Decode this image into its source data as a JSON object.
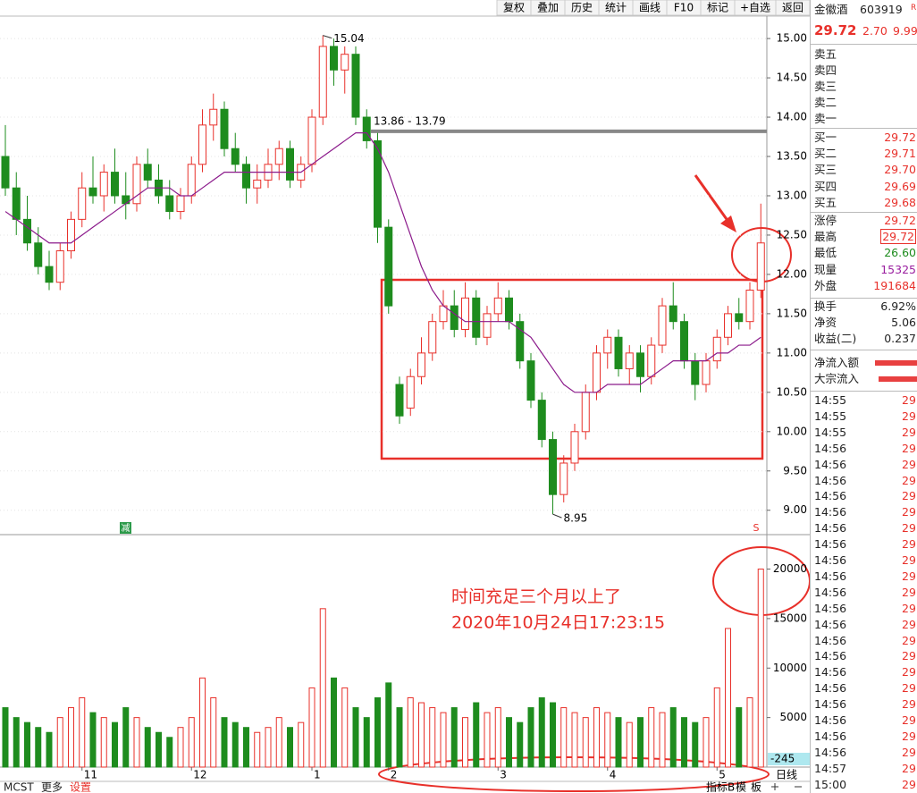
{
  "toolbar": [
    "复权",
    "叠加",
    "历史",
    "统计",
    "画线",
    "F10",
    "标记",
    "+自选",
    "返回"
  ],
  "chart_data": [
    {
      "type": "candlestick",
      "categories": [
        null,
        null,
        null,
        null,
        null,
        null,
        null,
        "11",
        null,
        null,
        null,
        null,
        null,
        null,
        null,
        null,
        null,
        "12",
        null,
        null,
        null,
        null,
        null,
        null,
        null,
        null,
        null,
        null,
        "1",
        null,
        null,
        null,
        null,
        null,
        null,
        "2",
        null,
        null,
        null,
        null,
        null,
        null,
        null,
        null,
        null,
        "3",
        null,
        null,
        null,
        null,
        null,
        null,
        null,
        null,
        null,
        "4",
        null,
        null,
        null,
        null,
        null,
        null,
        null,
        null,
        null,
        "5",
        null,
        null,
        null,
        null
      ],
      "open": [
        13.5,
        13.1,
        12.7,
        12.4,
        12.1,
        11.9,
        12.3,
        12.7,
        13.1,
        13.0,
        13.3,
        13.0,
        12.9,
        13.4,
        13.2,
        13.0,
        12.8,
        13.0,
        13.4,
        13.9,
        14.1,
        13.6,
        13.4,
        13.1,
        13.2,
        13.4,
        13.6,
        13.2,
        13.4,
        14.0,
        14.9,
        14.6,
        14.8,
        14.0,
        13.7,
        12.6,
        10.6,
        10.3,
        10.7,
        11.0,
        11.4,
        11.6,
        11.3,
        11.7,
        11.2,
        11.5,
        11.7,
        11.4,
        10.9,
        10.4,
        9.9,
        9.2,
        9.6,
        10.0,
        10.5,
        11.0,
        11.2,
        10.8,
        11.0,
        10.7,
        11.1,
        11.6,
        11.4,
        10.9,
        10.6,
        10.9,
        11.2,
        11.5,
        11.4,
        11.8
      ],
      "high": [
        13.9,
        13.3,
        13.0,
        12.6,
        12.3,
        12.4,
        12.8,
        13.3,
        13.5,
        13.4,
        13.6,
        13.3,
        13.5,
        13.6,
        13.4,
        13.2,
        13.1,
        13.5,
        14.1,
        14.3,
        14.2,
        13.8,
        13.5,
        13.4,
        13.6,
        13.7,
        13.7,
        13.5,
        14.1,
        15.04,
        15.0,
        14.9,
        14.9,
        14.1,
        13.8,
        12.7,
        10.7,
        10.8,
        11.2,
        11.5,
        11.8,
        11.8,
        11.9,
        11.8,
        11.6,
        11.9,
        11.8,
        11.5,
        11.0,
        10.5,
        10.0,
        9.7,
        10.1,
        10.6,
        11.1,
        11.3,
        11.3,
        11.1,
        11.1,
        11.2,
        11.7,
        11.9,
        11.5,
        11.0,
        11.0,
        11.3,
        11.6,
        11.7,
        11.9,
        12.9
      ],
      "low": [
        13.0,
        12.5,
        12.3,
        12.0,
        11.8,
        11.8,
        12.2,
        12.6,
        12.9,
        12.8,
        12.9,
        12.7,
        12.8,
        13.1,
        12.9,
        12.7,
        12.7,
        12.9,
        13.3,
        13.7,
        13.5,
        13.3,
        12.9,
        12.9,
        13.1,
        13.2,
        13.1,
        13.1,
        13.3,
        13.9,
        14.4,
        14.3,
        13.9,
        13.6,
        12.4,
        11.5,
        10.1,
        10.2,
        10.6,
        10.9,
        11.3,
        11.2,
        11.2,
        11.1,
        11.1,
        11.4,
        11.3,
        10.8,
        10.3,
        9.8,
        8.95,
        9.1,
        9.5,
        9.9,
        10.4,
        10.8,
        10.7,
        10.6,
        10.5,
        10.6,
        11.0,
        11.3,
        10.8,
        10.4,
        10.5,
        10.8,
        11.1,
        11.3,
        11.3,
        11.7
      ],
      "close": [
        13.1,
        12.7,
        12.4,
        12.1,
        11.9,
        12.3,
        12.7,
        13.1,
        13.0,
        13.3,
        13.0,
        12.9,
        13.4,
        13.2,
        13.0,
        12.8,
        13.0,
        13.4,
        13.9,
        14.1,
        13.6,
        13.4,
        13.1,
        13.2,
        13.4,
        13.6,
        13.2,
        13.4,
        14.0,
        14.9,
        14.6,
        14.8,
        14.0,
        13.7,
        12.6,
        11.6,
        10.2,
        10.7,
        11.0,
        11.4,
        11.6,
        11.3,
        11.7,
        11.2,
        11.5,
        11.7,
        11.4,
        10.9,
        10.4,
        9.9,
        9.2,
        9.6,
        10.0,
        10.5,
        11.0,
        11.2,
        10.8,
        11.0,
        10.7,
        11.1,
        11.6,
        11.4,
        10.9,
        10.6,
        10.9,
        11.2,
        11.5,
        11.4,
        11.8,
        12.4
      ],
      "ma": {
        "color": "#8b1a8b",
        "values": [
          12.8,
          12.7,
          12.6,
          12.5,
          12.4,
          12.4,
          12.4,
          12.5,
          12.6,
          12.7,
          12.8,
          12.9,
          13.0,
          13.1,
          13.1,
          13.1,
          13.0,
          13.0,
          13.1,
          13.2,
          13.3,
          13.3,
          13.3,
          13.3,
          13.3,
          13.3,
          13.3,
          13.3,
          13.4,
          13.5,
          13.6,
          13.7,
          13.8,
          13.8,
          13.6,
          13.3,
          12.9,
          12.5,
          12.1,
          11.8,
          11.6,
          11.5,
          11.4,
          11.4,
          11.4,
          11.4,
          11.4,
          11.3,
          11.2,
          11.0,
          10.8,
          10.6,
          10.5,
          10.5,
          10.5,
          10.6,
          10.6,
          10.6,
          10.6,
          10.7,
          10.8,
          10.9,
          10.9,
          10.9,
          10.9,
          11.0,
          11.0,
          11.1,
          11.1,
          11.2
        ]
      },
      "up_color": "#e8302a",
      "down_color": "#1e8c1e",
      "ylim": [
        8.69,
        15.24
      ],
      "yticks": [
        {
          "value": 9,
          "label": "9.00"
        },
        {
          "value": 9.5,
          "label": "9.50"
        },
        {
          "value": 10,
          "label": "10.00"
        },
        {
          "value": 10.5,
          "label": "10.50"
        },
        {
          "value": 11,
          "label": "11.00"
        },
        {
          "value": 11.5,
          "label": "11.50"
        },
        {
          "value": 12,
          "label": "12.00"
        },
        {
          "value": 12.5,
          "label": "12.50"
        },
        {
          "value": 13,
          "label": "13.00"
        },
        {
          "value": 13.5,
          "label": "13.50"
        },
        {
          "value": 14,
          "label": "14.00"
        },
        {
          "value": 14.5,
          "label": "14.50"
        },
        {
          "value": 15,
          "label": "15.00"
        }
      ],
      "grid": true,
      "high_label": "15.04",
      "low_label": "8.95",
      "level": 13.82,
      "level_label": "13.86 - 13.79",
      "markers": [
        "减",
        "S"
      ]
    },
    {
      "type": "bar",
      "values": [
        6000,
        5000,
        4500,
        4000,
        3500,
        5000,
        6000,
        7000,
        5500,
        5000,
        4500,
        6000,
        5000,
        4000,
        3500,
        3000,
        4000,
        5000,
        9000,
        7000,
        5000,
        4500,
        4000,
        3500,
        4000,
        5000,
        4000,
        4500,
        8000,
        16000,
        9000,
        8000,
        6000,
        5000,
        7000,
        8500,
        6000,
        7000,
        6500,
        6000,
        5500,
        6000,
        5000,
        6500,
        5500,
        6000,
        5000,
        4500,
        6000,
        7000,
        6500,
        6000,
        5500,
        5000,
        6000,
        5500,
        5000,
        4500,
        5000,
        6000,
        5500,
        6000,
        5000,
        4500,
        5000,
        8000,
        14000,
        6000,
        7000,
        20000
      ],
      "ylim": [
        0,
        23300
      ],
      "yticks": [
        5000,
        10000,
        15000,
        20000
      ],
      "last_label": "-245"
    }
  ],
  "annotation": [
    "时间充足三个月以上了",
    "2020年10月24日17:23:15"
  ],
  "bottom": {
    "left": [
      "MCST",
      "更多",
      "设置"
    ],
    "right": [
      "指标B",
      "模",
      "板"
    ],
    "period": "日线"
  },
  "sidebar": {
    "name": "金徽酒",
    "code": "603919",
    "flag": "R",
    "price": "29.72",
    "change": "2.70",
    "pct": "9.99",
    "asks": [
      "卖五",
      "卖四",
      "卖三",
      "卖二",
      "卖一"
    ],
    "bids": [
      [
        "买一",
        "29.72"
      ],
      [
        "买二",
        "29.71"
      ],
      [
        "买三",
        "29.70"
      ],
      [
        "买四",
        "29.69"
      ],
      [
        "买五",
        "29.68"
      ]
    ],
    "stats": [
      [
        "涨停",
        "29.72"
      ],
      [
        "最高",
        "29.72"
      ],
      [
        "最低",
        "26.60"
      ],
      [
        "现量",
        "15325"
      ],
      [
        "外盘",
        "191684"
      ]
    ],
    "stats2": [
      [
        "换手",
        "6.92%"
      ],
      [
        "净资",
        "5.06"
      ],
      [
        "收益(二)",
        "0.237"
      ]
    ],
    "flows": [
      "净流入额",
      "大宗流入"
    ],
    "ticks": [
      [
        "14:55",
        "29"
      ],
      [
        "14:55",
        "29"
      ],
      [
        "14:55",
        "29"
      ],
      [
        "14:56",
        "29"
      ],
      [
        "14:56",
        "29"
      ],
      [
        "14:56",
        "29"
      ],
      [
        "14:56",
        "29"
      ],
      [
        "14:56",
        "29"
      ],
      [
        "14:56",
        "29"
      ],
      [
        "14:56",
        "29"
      ],
      [
        "14:56",
        "29"
      ],
      [
        "14:56",
        "29"
      ],
      [
        "14:56",
        "29"
      ],
      [
        "14:56",
        "29"
      ],
      [
        "14:56",
        "29"
      ],
      [
        "14:56",
        "29"
      ],
      [
        "14:56",
        "29"
      ],
      [
        "14:56",
        "29"
      ],
      [
        "14:56",
        "29"
      ],
      [
        "14:56",
        "29"
      ],
      [
        "14:56",
        "29"
      ],
      [
        "14:56",
        "29"
      ],
      [
        "14:56",
        "29"
      ],
      [
        "14:57",
        "29"
      ],
      [
        "15:00",
        "29"
      ]
    ]
  }
}
